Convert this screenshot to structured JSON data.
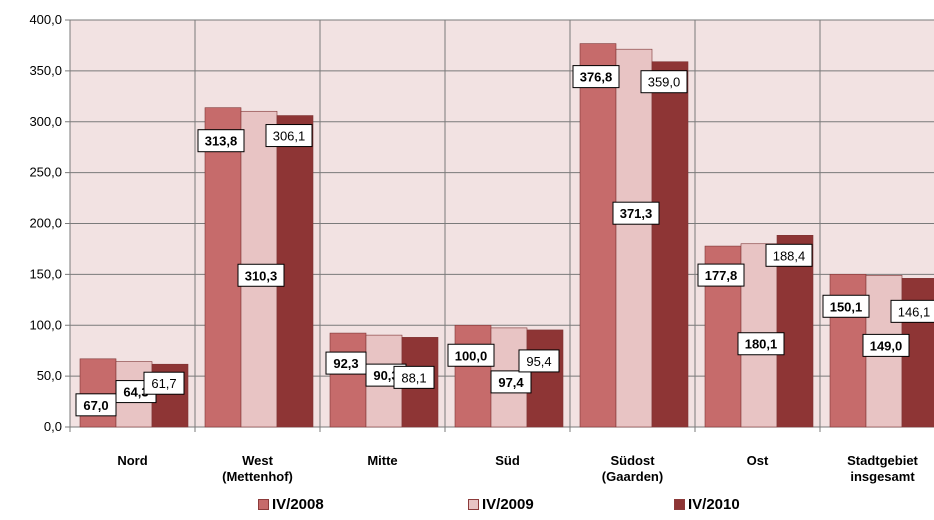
{
  "chart_data": {
    "type": "bar",
    "title": "",
    "xlabel": "",
    "ylabel": "",
    "ylim": [
      0,
      400
    ],
    "yticks": [
      "0,0",
      "50,0",
      "100,0",
      "150,0",
      "200,0",
      "250,0",
      "300,0",
      "350,0",
      "400,0"
    ],
    "grid": true,
    "legend_position": "bottom",
    "categories": [
      [
        "Nord"
      ],
      [
        "West",
        "(Mettenhof)"
      ],
      [
        "Mitte"
      ],
      [
        "Süd"
      ],
      [
        "Südost",
        "(Gaarden)"
      ],
      [
        "Ost"
      ],
      [
        "Stadtgebiet",
        "insgesamt"
      ]
    ],
    "series": [
      {
        "name": "IV/2008",
        "color": "#c66b6b",
        "values": [
          67.0,
          313.8,
          92.3,
          100.0,
          376.8,
          177.8,
          150.1
        ],
        "labels": [
          "67,0",
          "313,8",
          "92,3",
          "100,0",
          "376,8",
          "177,8",
          "150,1"
        ],
        "label_bold": true
      },
      {
        "name": "IV/2009",
        "color": "#e8c4c4",
        "values": [
          64.3,
          310.3,
          90.3,
          97.4,
          371.3,
          180.1,
          149.0
        ],
        "labels": [
          "64,3",
          "310,3",
          "90,3",
          "97,4",
          "371,3",
          "180,1",
          "149,0"
        ],
        "label_bold": true
      },
      {
        "name": "IV/2010",
        "color": "#8e3535",
        "values": [
          61.7,
          306.1,
          88.1,
          95.4,
          359.0,
          188.4,
          146.1
        ],
        "labels": [
          "61,7",
          "306,1",
          "88,1",
          "95,4",
          "359,0",
          "188,4",
          "146,1"
        ],
        "label_bold": false
      }
    ],
    "colors": {
      "plot_background": "#f2e2e2",
      "gridline": "#7a7a7a",
      "label_box_border": "#000000"
    }
  }
}
